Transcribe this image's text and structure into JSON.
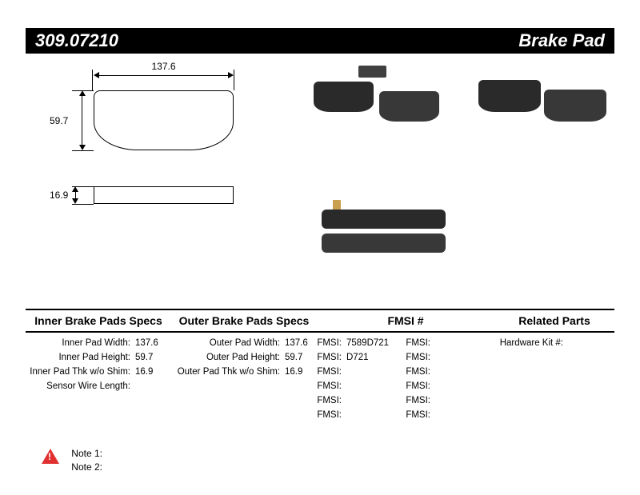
{
  "header": {
    "part_number": "309.07210",
    "title": "Brake Pad"
  },
  "diagram": {
    "width": "137.6",
    "height": "59.7",
    "thickness": "16.9"
  },
  "specs": {
    "inner_title": "Inner Brake Pads Specs",
    "outer_title": "Outer Brake Pads Specs",
    "fmsi_title": "FMSI #",
    "related_title": "Related Parts",
    "inner": {
      "width_label": "Inner Pad Width:",
      "width_value": "137.6",
      "height_label": "Inner Pad Height:",
      "height_value": "59.7",
      "thk_label": "Inner Pad Thk w/o Shim:",
      "thk_value": "16.9",
      "sensor_label": "Sensor Wire Length:",
      "sensor_value": ""
    },
    "outer": {
      "width_label": "Outer Pad Width:",
      "width_value": "137.6",
      "height_label": "Outer Pad Height:",
      "height_value": "59.7",
      "thk_label": "Outer Pad Thk w/o Shim:",
      "thk_value": "16.9"
    },
    "fmsi_label": "FMSI:",
    "fmsi_col_a": [
      "7589D721",
      "D721",
      "",
      "",
      "",
      ""
    ],
    "fmsi_col_b": [
      "",
      "",
      "",
      "",
      "",
      ""
    ],
    "related": {
      "hardware_label": "Hardware Kit #:",
      "hardware_value": ""
    }
  },
  "notes": {
    "note1_label": "Note 1:",
    "note1_value": "",
    "note2_label": "Note 2:",
    "note2_value": ""
  }
}
